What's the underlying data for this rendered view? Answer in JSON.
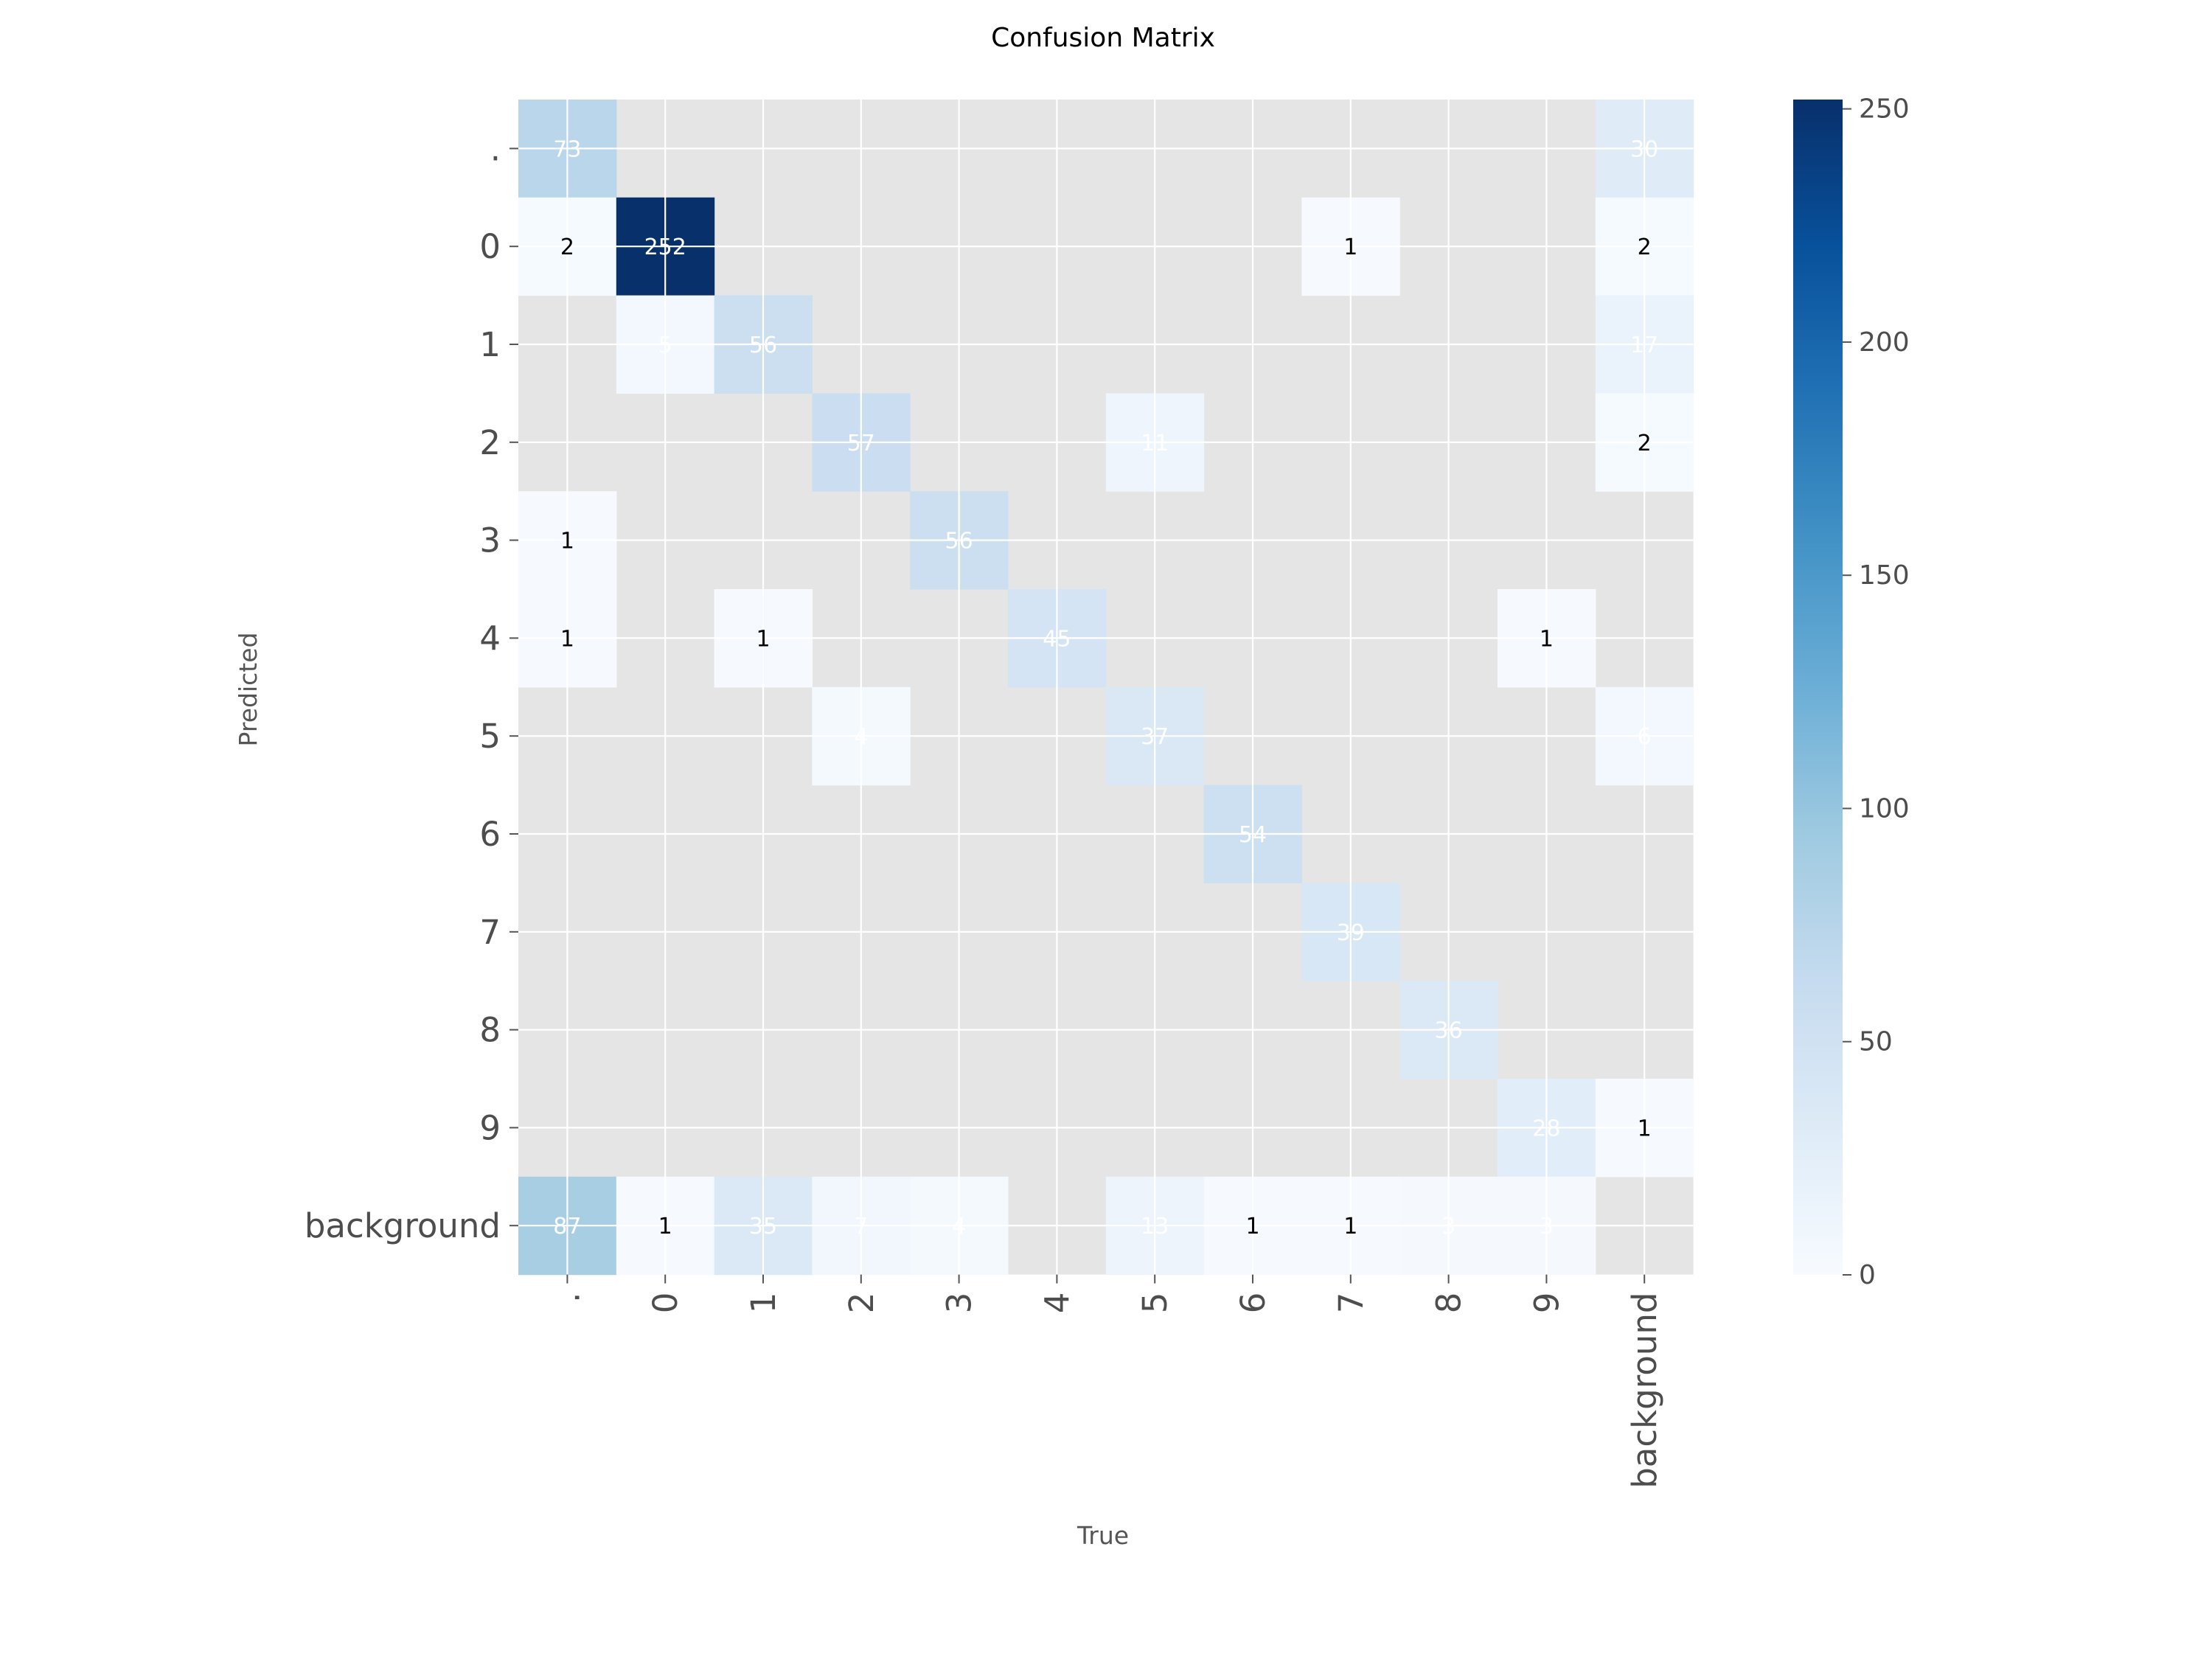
{
  "chart_data": {
    "type": "heatmap",
    "title": "Confusion Matrix",
    "xlabel": "True",
    "ylabel": "Predicted",
    "classes": [
      ".",
      "0",
      "1",
      "2",
      "3",
      "4",
      "5",
      "6",
      "7",
      "8",
      "9",
      "background"
    ],
    "matrix": [
      [
        73,
        null,
        null,
        null,
        null,
        null,
        null,
        null,
        null,
        null,
        null,
        30
      ],
      [
        2,
        252,
        null,
        null,
        null,
        null,
        null,
        null,
        1,
        null,
        null,
        2
      ],
      [
        null,
        5,
        56,
        null,
        null,
        null,
        null,
        null,
        null,
        null,
        null,
        17
      ],
      [
        null,
        null,
        null,
        57,
        null,
        null,
        11,
        null,
        null,
        null,
        null,
        2
      ],
      [
        1,
        null,
        null,
        null,
        56,
        null,
        null,
        null,
        null,
        null,
        null,
        null
      ],
      [
        1,
        null,
        1,
        null,
        null,
        45,
        null,
        null,
        null,
        null,
        1,
        null
      ],
      [
        null,
        null,
        null,
        4,
        null,
        null,
        37,
        null,
        null,
        null,
        null,
        6
      ],
      [
        null,
        null,
        null,
        null,
        null,
        null,
        null,
        54,
        null,
        null,
        null,
        null
      ],
      [
        null,
        null,
        null,
        null,
        null,
        null,
        null,
        null,
        39,
        null,
        null,
        null
      ],
      [
        null,
        null,
        null,
        null,
        null,
        null,
        null,
        null,
        null,
        36,
        null,
        null
      ],
      [
        null,
        null,
        null,
        null,
        null,
        null,
        null,
        null,
        null,
        null,
        28,
        1
      ],
      [
        87,
        1,
        35,
        7,
        4,
        null,
        13,
        1,
        1,
        3,
        3,
        null
      ]
    ],
    "colorbar": {
      "min": 0,
      "max": 252,
      "ticks": [
        0,
        50,
        100,
        150,
        200,
        250
      ]
    },
    "colormap": [
      "#f7fbff",
      "#deebf7",
      "#c6dbef",
      "#9ecae1",
      "#6baed6",
      "#4292c6",
      "#2171b5",
      "#08519c",
      "#08306b"
    ],
    "empty_cell_color": "#e5e5e5",
    "grid": true
  }
}
